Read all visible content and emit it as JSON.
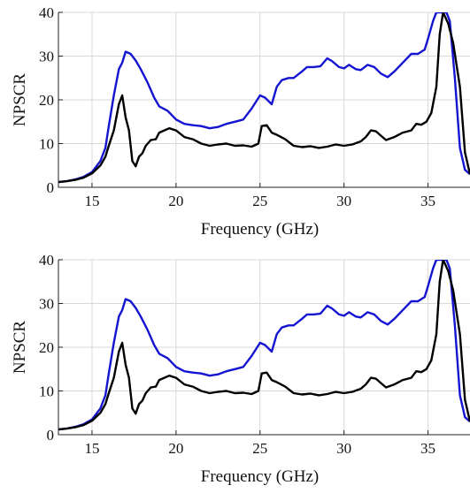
{
  "chart_data": [
    {
      "type": "line",
      "xlabel": "Frequency (GHz)",
      "ylabel": "NPSCR",
      "xlim": [
        13,
        37.5
      ],
      "ylim": [
        0,
        40
      ],
      "xticks": [
        15,
        20,
        25,
        30,
        35
      ],
      "yticks": [
        0,
        10,
        20,
        30,
        40
      ],
      "grid": true,
      "colors": [
        "#1414d2",
        "#000000"
      ],
      "series": [
        {
          "x": [
            13,
            13.5,
            14,
            14.5,
            15,
            15.5,
            15.8,
            16,
            16.3,
            16.6,
            16.8,
            17,
            17.3,
            17.6,
            17.9,
            18.3,
            18.7,
            19,
            19.5,
            20,
            20.5,
            21,
            21.5,
            22,
            22.5,
            23,
            23.5,
            24,
            24.5,
            25,
            25.3,
            25.7,
            26,
            26.3,
            26.7,
            27,
            27.5,
            27.8,
            28.2,
            28.6,
            29,
            29.3,
            29.7,
            30,
            30.3,
            30.7,
            31,
            31.4,
            31.8,
            32.2,
            32.6,
            33,
            33.5,
            34,
            34.4,
            34.8,
            35,
            35.3,
            35.5,
            35.7,
            35.9,
            36.1,
            36.3,
            36.6,
            36.9,
            37.2,
            37.5
          ],
          "values": [
            1.2,
            1.4,
            1.8,
            2.4,
            3.5,
            6,
            9,
            14,
            21,
            27,
            28.5,
            31,
            30.5,
            29,
            27,
            24,
            20.5,
            18.5,
            17.5,
            15.5,
            14.5,
            14.2,
            14,
            13.5,
            13.8,
            14.5,
            15,
            15.5,
            18,
            21,
            20.5,
            19,
            23,
            24.5,
            25,
            25,
            26.5,
            27.5,
            27.5,
            27.7,
            29.5,
            28.8,
            27.5,
            27.2,
            28,
            27,
            26.8,
            28,
            27.5,
            26,
            25.2,
            26.5,
            28.5,
            30.5,
            30.5,
            31.5,
            34,
            38,
            40,
            40,
            40,
            40,
            38,
            25,
            9,
            4,
            3
          ]
        },
        {
          "x": [
            13,
            13.5,
            14,
            14.5,
            15,
            15.5,
            15.8,
            16,
            16.3,
            16.6,
            16.8,
            17,
            17.2,
            17.4,
            17.6,
            17.8,
            18,
            18.2,
            18.5,
            18.8,
            19,
            19.3,
            19.6,
            20,
            20.5,
            21,
            21.5,
            22,
            22.5,
            23,
            23.5,
            24,
            24.5,
            24.9,
            25.1,
            25.4,
            25.7,
            26,
            26.5,
            27,
            27.5,
            28,
            28.5,
            29,
            29.5,
            30,
            30.5,
            31,
            31.3,
            31.6,
            31.9,
            32.2,
            32.5,
            33,
            33.5,
            34,
            34.3,
            34.6,
            34.9,
            35.2,
            35.5,
            35.7,
            35.9,
            36.2,
            36.5,
            36.9,
            37.2,
            37.5
          ],
          "values": [
            1.2,
            1.4,
            1.7,
            2.2,
            3.2,
            5,
            7,
            9.5,
            13,
            19,
            21,
            16,
            13,
            6,
            4.8,
            7,
            7.8,
            9.5,
            10.8,
            11,
            12.5,
            13,
            13.5,
            13,
            11.5,
            11,
            10,
            9.5,
            9.8,
            10,
            9.5,
            9.6,
            9.3,
            10,
            14,
            14.2,
            12.5,
            12,
            11,
            9.5,
            9.2,
            9.4,
            9,
            9.3,
            9.8,
            9.5,
            9.8,
            10.5,
            11.5,
            13,
            12.8,
            11.8,
            10.8,
            11.5,
            12.5,
            13,
            14.5,
            14.3,
            15,
            17,
            23,
            35,
            40,
            37.5,
            33,
            23,
            8,
            3
          ]
        }
      ]
    },
    {
      "type": "line",
      "xlabel": "Frequency (GHz)",
      "ylabel": "NPSCR",
      "xlim": [
        13,
        37.5
      ],
      "ylim": [
        0,
        40
      ],
      "xticks": [
        15,
        20,
        25,
        30,
        35
      ],
      "yticks": [
        0,
        10,
        20,
        30,
        40
      ],
      "grid": true,
      "colors": [
        "#1414d2",
        "#000000"
      ],
      "series": [
        {
          "x": [
            13,
            13.5,
            14,
            14.5,
            15,
            15.5,
            15.8,
            16,
            16.3,
            16.6,
            16.8,
            17,
            17.3,
            17.6,
            17.9,
            18.3,
            18.7,
            19,
            19.5,
            20,
            20.5,
            21,
            21.5,
            22,
            22.5,
            23,
            23.5,
            24,
            24.5,
            25,
            25.3,
            25.7,
            26,
            26.3,
            26.7,
            27,
            27.5,
            27.8,
            28.2,
            28.6,
            29,
            29.3,
            29.7,
            30,
            30.3,
            30.7,
            31,
            31.4,
            31.8,
            32.2,
            32.6,
            33,
            33.5,
            34,
            34.4,
            34.8,
            35,
            35.3,
            35.5,
            35.7,
            35.9,
            36.1,
            36.3,
            36.6,
            36.9,
            37.2,
            37.5
          ],
          "values": [
            1.2,
            1.4,
            1.8,
            2.4,
            3.5,
            6,
            9,
            14,
            21,
            27,
            28.5,
            31,
            30.5,
            29,
            27,
            24,
            20.5,
            18.5,
            17.5,
            15.5,
            14.5,
            14.2,
            14,
            13.5,
            13.8,
            14.5,
            15,
            15.5,
            18,
            21,
            20.5,
            19,
            23,
            24.5,
            25,
            25,
            26.5,
            27.5,
            27.5,
            27.7,
            29.5,
            28.8,
            27.5,
            27.2,
            28,
            27,
            26.8,
            28,
            27.5,
            26,
            25.2,
            26.5,
            28.5,
            30.5,
            30.5,
            31.5,
            34,
            38,
            40,
            40,
            40,
            40,
            38,
            25,
            9,
            4,
            3
          ]
        },
        {
          "x": [
            13,
            13.5,
            14,
            14.5,
            15,
            15.5,
            15.8,
            16,
            16.3,
            16.6,
            16.8,
            17,
            17.2,
            17.4,
            17.6,
            17.8,
            18,
            18.2,
            18.5,
            18.8,
            19,
            19.3,
            19.6,
            20,
            20.5,
            21,
            21.5,
            22,
            22.5,
            23,
            23.5,
            24,
            24.5,
            24.9,
            25.1,
            25.4,
            25.7,
            26,
            26.5,
            27,
            27.5,
            28,
            28.5,
            29,
            29.5,
            30,
            30.5,
            31,
            31.3,
            31.6,
            31.9,
            32.2,
            32.5,
            33,
            33.5,
            34,
            34.3,
            34.6,
            34.9,
            35.2,
            35.5,
            35.7,
            35.9,
            36.2,
            36.5,
            36.9,
            37.2,
            37.5
          ],
          "values": [
            1.2,
            1.4,
            1.7,
            2.2,
            3.2,
            5,
            7,
            9.5,
            13,
            19,
            21,
            16,
            13,
            6,
            4.8,
            7,
            7.8,
            9.5,
            10.8,
            11,
            12.5,
            13,
            13.5,
            13,
            11.5,
            11,
            10,
            9.5,
            9.8,
            10,
            9.5,
            9.6,
            9.3,
            10,
            14,
            14.2,
            12.5,
            12,
            11,
            9.5,
            9.2,
            9.4,
            9,
            9.3,
            9.8,
            9.5,
            9.8,
            10.5,
            11.5,
            13,
            12.8,
            11.8,
            10.8,
            11.5,
            12.5,
            13,
            14.5,
            14.3,
            15,
            17,
            23,
            35,
            40,
            37.5,
            33,
            23,
            8,
            3
          ]
        }
      ]
    }
  ]
}
